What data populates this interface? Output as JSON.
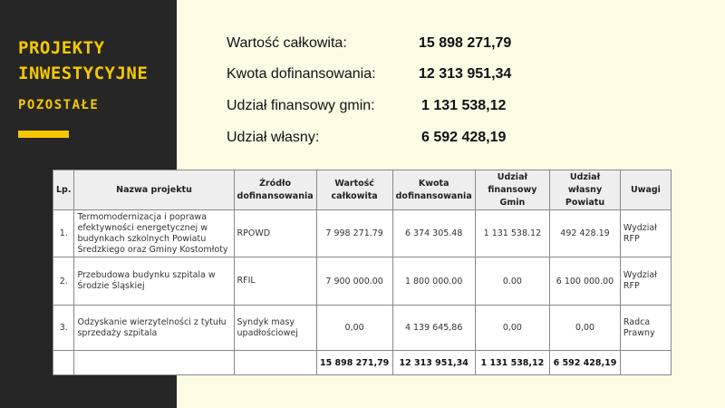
{
  "side": {
    "title1": "PROJEKTY",
    "title2": "INWESTYCYJNE",
    "subtitle": "POZOSTAŁE",
    "accent": "#f5c800",
    "bg": "#262626"
  },
  "summary": [
    {
      "label": "Wartość całkowita:",
      "value": "15 898 271,79"
    },
    {
      "label": "Kwota dofinansowania:",
      "value": "12 313 951,34"
    },
    {
      "label": "Udział finansowy gmin:",
      "value": "1 131 538,12"
    },
    {
      "label": "Udział własny:",
      "value": "6 592 428,19"
    }
  ],
  "table": {
    "headers": [
      "Lp.",
      "Nazwa projektu",
      "Źródło dofinansowania",
      "Wartość całkowita",
      "Kwota dofinansowania",
      "Udział finansowy Gmin",
      "Udział własny Powiatu",
      "Uwagi"
    ],
    "rows": [
      [
        "1.",
        "Termomodernizacja i poprawa efektywności energetycznej w budynkach szkolnych Powiatu Średzkiego oraz Gminy Kostomłoty",
        "RPOWD",
        "7 998 271.79",
        "6 374 305.48",
        "1 131 538.12",
        "492 428.19",
        "Wydział RFP"
      ],
      [
        "2.",
        "Przebudowa budynku szpitala w Środzie Śląskiej",
        "RFIL",
        "7 900 000.00",
        "1 800 000.00",
        "0.00",
        "6 100 000.00",
        "Wydział RFP"
      ],
      [
        "3.",
        "Odzyskanie wierzytelności z tytułu sprzedaży szpitala",
        "Syndyk masy upadłościowej",
        "0,00",
        "4 139 645,86",
        "0,00",
        "0,00",
        "Radca Prawny"
      ]
    ],
    "totals": [
      "",
      "",
      "",
      "15 898 271,79",
      "12 313 951,34",
      "1 131 538,12",
      "6 592 428,19",
      ""
    ]
  }
}
